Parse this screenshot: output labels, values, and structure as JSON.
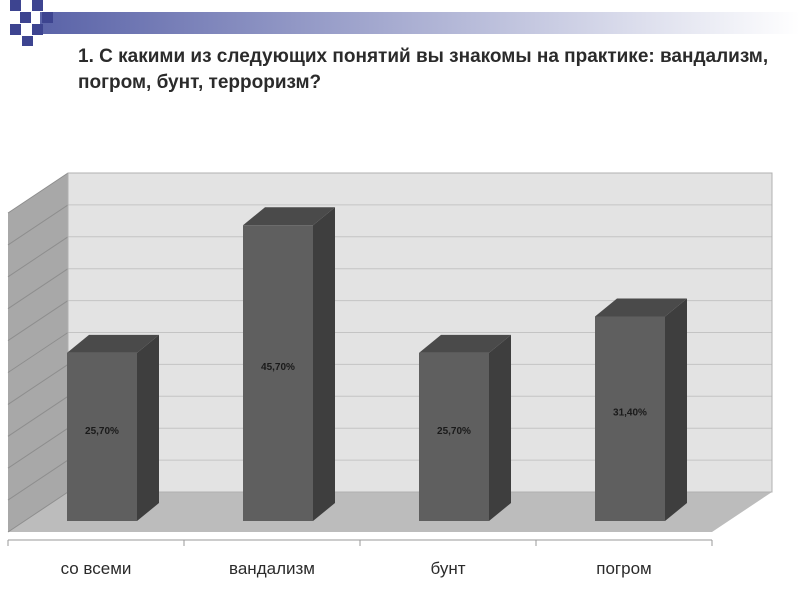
{
  "slide": {
    "title": "1. С какими из следующих понятий вы знакомы на практике: вандализм, погром, бунт, терроризм?",
    "colors": {
      "topbar_gradient_start": "#5a63a8",
      "topbar_gradient_end": "#ffffff",
      "squares": "#3d4490"
    }
  },
  "chart_data": {
    "type": "bar",
    "style": "3d-column",
    "categories": [
      "со всеми",
      "вандализм",
      "бунт",
      "погром"
    ],
    "values": [
      25.7,
      45.7,
      25.7,
      31.4
    ],
    "data_labels": [
      "25,70%",
      "45,70%",
      "25,70%",
      "31,40%"
    ],
    "title": "",
    "xlabel": "",
    "ylabel": "",
    "ylim": [
      0,
      50
    ],
    "gridlines": true,
    "legend": "none",
    "colors": {
      "bar_front": "#5f5f5f",
      "bar_side": "#3e3e3e",
      "bar_top": "#4a4a4a",
      "wall": "#e3e3e3",
      "side_wall": "#a8a8a8",
      "floor": "#bcbcbc",
      "grid": "#c4c4c4"
    }
  }
}
